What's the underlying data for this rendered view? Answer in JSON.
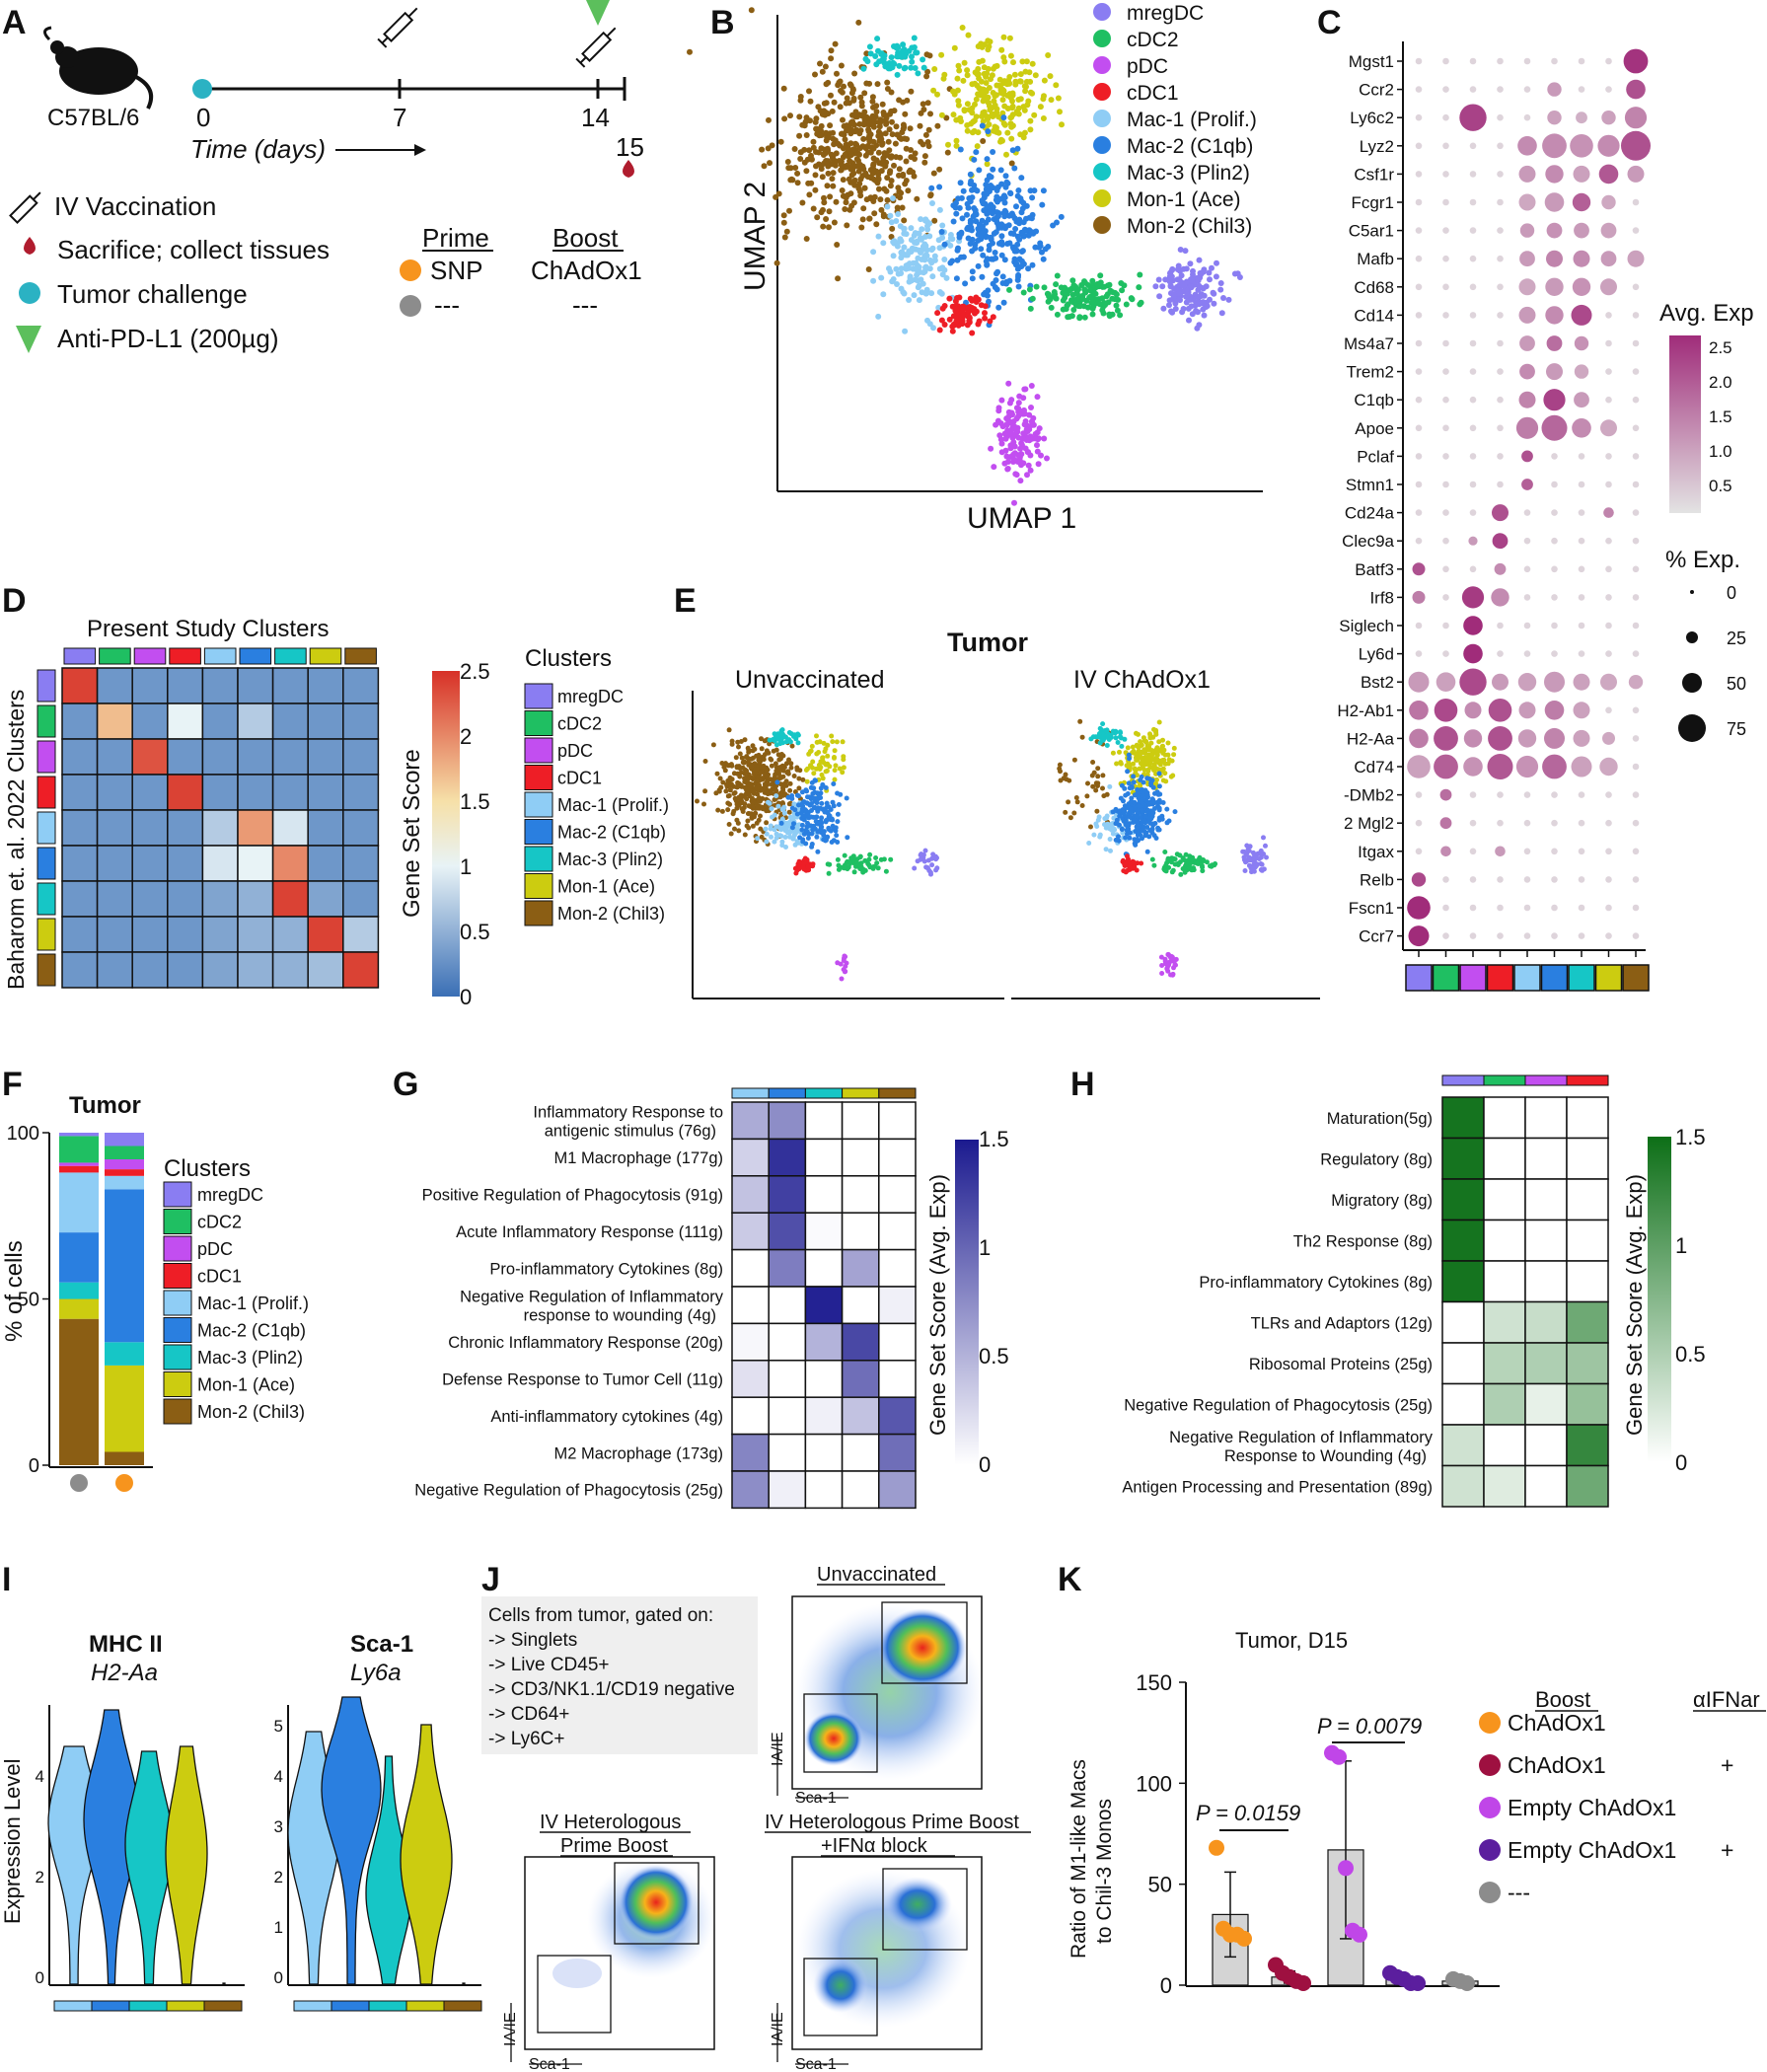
{
  "colors": {
    "mregDC": "#8a7df2",
    "cDC2": "#1fbf62",
    "pDC": "#c24ef0",
    "cDC1": "#ee1e26",
    "Mac1": "#8fcdf5",
    "Mac2": "#2a7fe0",
    "Mac3": "#16c6c6",
    "Mon1": "#cccc10",
    "Mon2": "#8b5e14",
    "orange": "#f7941d",
    "maroon": "#9e1040",
    "violet": "#c046e8",
    "purple": "#5b1e9e",
    "grey": "#8c8c8c",
    "teal": "#2bb2c3",
    "green_tri": "#5cbf5c",
    "red_drop": "#b01c2e"
  },
  "clusters": [
    "mregDC",
    "cDC2",
    "pDC",
    "cDC1",
    "Mac-1 (Prolif.)",
    "Mac-2 (C1qb)",
    "Mac-3 (Plin2)",
    "Mon-1 (Ace)",
    "Mon-2 (Chil3)"
  ],
  "panelA": {
    "label": "A",
    "mouse": "C57BL/6",
    "ticks": [
      "0",
      "7",
      "14"
    ],
    "tick15": "15",
    "time_label": "Time (days)",
    "legend": [
      "IV Vaccination",
      "Sacrifice; collect tissues",
      "Tumor challenge",
      "Anti-PD-L1 (200µg)"
    ],
    "table": {
      "h1": "Prime",
      "h2": "Boost",
      "r1c1": "SNP",
      "r1c2": "ChAdOx1",
      "r2c1": "---",
      "r2c2": "---"
    }
  },
  "panelB": {
    "label": "B",
    "xlabel": "UMAP 1",
    "ylabel": "UMAP 2"
  },
  "panelC": {
    "label": "C",
    "genes": [
      "Mgst1",
      "Ccr2",
      "Ly6c2",
      "Lyz2",
      "Csf1r",
      "Fcgr1",
      "C5ar1",
      "Mafb",
      "Cd68",
      "Cd14",
      "Ms4a7",
      "Trem2",
      "C1qb",
      "Apoe",
      "Pclaf",
      "Stmn1",
      "Cd24a",
      "Clec9a",
      "Batf3",
      "Irf8",
      "Siglech",
      "Ly6d",
      "Bst2",
      "H2-Ab1",
      "H2-Aa",
      "Cd74",
      "-DMb2",
      "2  Mgl2",
      "Itgax",
      "Relb",
      "Fscn1",
      "Ccr7"
    ],
    "avg_title": "Avg. Exp",
    "avg_ticks": [
      "2.5",
      "2.0",
      "1.5",
      "1.0",
      "0.5"
    ],
    "pct_title": "% Exp.",
    "pct_ticks": [
      "0",
      "25",
      "50",
      "75"
    ]
  },
  "panelD": {
    "label": "D",
    "title": "Present Study Clusters",
    "ylabel": "Baharom et. al. 2022 Clusters",
    "cbar_label": "Gene Set Score",
    "cbar_ticks": [
      "2.5",
      "2",
      "1.5",
      "1",
      "0.5",
      "0"
    ],
    "legend_title": "Clusters"
  },
  "panelE": {
    "label": "E",
    "title": "Tumor",
    "left": "Unvaccinated",
    "right": "IV ChAdOx1"
  },
  "panelF": {
    "label": "F",
    "title": "Tumor",
    "ylabel": "% of cells",
    "yticks": [
      "100",
      "50",
      "0"
    ],
    "legend_title": "Clusters"
  },
  "panelG": {
    "label": "G",
    "rows": [
      [
        "Inflammatory Response to",
        "antigenic stimulus (76g)"
      ],
      [
        "M1 Macrophage (177g)"
      ],
      [
        "Positive Regulation of Phagocytosis (91g)"
      ],
      [
        "Acute Inflammatory Response (111g)"
      ],
      [
        "Pro-inflammatory Cytokines (8g)"
      ],
      [
        "Negative Regulation of Inflammatory",
        "response to wounding (4g)"
      ],
      [
        "Chronic Inflammatory Response (20g)"
      ],
      [
        "Defense Response to Tumor Cell (11g)"
      ],
      [
        "Anti-inflammatory cytokines (4g)"
      ],
      [
        "M2 Macrophage (173g)"
      ],
      [
        "Negative Regulation of Phagocytosis (25g)"
      ]
    ],
    "cbar_label": "Gene Set Score (Avg. Exp)",
    "cbar_ticks": [
      "1.5",
      "1",
      "0.5",
      "0"
    ]
  },
  "panelH": {
    "label": "H",
    "rows": [
      [
        "Maturation(5g)"
      ],
      [
        "Regulatory (8g)"
      ],
      [
        "Migratory (8g)"
      ],
      [
        "Th2 Response (8g)"
      ],
      [
        "Pro-inflammatory Cytokines (8g)"
      ],
      [
        "TLRs and Adaptors (12g)"
      ],
      [
        "Ribosomal Proteins (25g)"
      ],
      [
        "Negative Regulation of Phagocytosis (25g)"
      ],
      [
        "Negative Regulation of Inflammatory",
        "Response to Wounding (4g)"
      ],
      [
        "Antigen Processing and Presentation (89g)"
      ]
    ],
    "cbar_label": "Gene Set Score (Avg. Exp)",
    "cbar_ticks": [
      "1.5",
      "1",
      "0.5",
      "0"
    ]
  },
  "panelI": {
    "label": "I",
    "left_title": "MHC II",
    "left_sub": "H2-Aa",
    "right_title": "Sca-1",
    "right_sub": "Ly6a",
    "ylabel": "Expression Level",
    "left_ticks": [
      "4",
      "2",
      "0"
    ],
    "right_ticks": [
      "5",
      "4",
      "3",
      "2",
      "1",
      "0"
    ]
  },
  "panelJ": {
    "label": "J",
    "gate_lines": [
      "Cells from tumor, gated on:",
      "-> Singlets",
      "-> Live CD45+",
      "-> CD3/NK1.1/CD19 negative",
      "-> CD64+",
      "-> Ly6C+"
    ],
    "t1": "Unvaccinated",
    "t2a": "IV Heterologous",
    "t2b": "Prime Boost",
    "t3a": "IV Heterologous Prime Boost",
    "t3b": "+IFNα block",
    "xaxis": "Sca-1",
    "yaxis": "IA/IE"
  },
  "panelK": {
    "label": "K",
    "title": "Tumor, D15",
    "ylabel1": "Ratio of M1-like Macs",
    "ylabel2": "to Chil-3 Monos",
    "yticks": [
      "150",
      "100",
      "50",
      "0"
    ],
    "p1": "P = 0.0159",
    "p2": "P = 0.0079",
    "legend_boost": "Boost",
    "legend_ifnar": "αIFNar",
    "legend_rows": [
      {
        "label": "ChAdOx1",
        "ifnar": ""
      },
      {
        "label": "ChAdOx1",
        "ifnar": "+"
      },
      {
        "label": "Empty ChAdOx1",
        "ifnar": ""
      },
      {
        "label": "Empty ChAdOx1",
        "ifnar": "+"
      },
      {
        "label": "---",
        "ifnar": ""
      }
    ]
  },
  "chart_data": [
    {
      "type": "heatmap",
      "title": "Present Study Clusters",
      "ylabel": "Baharom et. al. 2022 Clusters",
      "xlabel": "",
      "categories": [
        "mregDC",
        "cDC2",
        "pDC",
        "cDC1",
        "Mac-1 (Prolif.)",
        "Mac-2 (C1qb)",
        "Mac-3 (Plin2)",
        "Mon-1 (Ace)",
        "Mon-2 (Chil3)"
      ],
      "range": [
        0,
        2.5
      ],
      "matrix": [
        [
          2.4,
          0.3,
          0.3,
          0.3,
          0.3,
          0.3,
          0.3,
          0.3,
          0.3
        ],
        [
          0.3,
          1.7,
          0.3,
          1.0,
          0.3,
          0.7,
          0.3,
          0.3,
          0.3
        ],
        [
          0.3,
          0.3,
          2.3,
          0.3,
          0.3,
          0.3,
          0.3,
          0.3,
          0.3
        ],
        [
          0.3,
          0.3,
          0.3,
          2.4,
          0.3,
          0.3,
          0.3,
          0.3,
          0.3
        ],
        [
          0.3,
          0.3,
          0.3,
          0.3,
          0.7,
          1.9,
          0.9,
          0.3,
          0.3
        ],
        [
          0.3,
          0.3,
          0.3,
          0.3,
          0.9,
          1.0,
          2.0,
          0.3,
          0.3
        ],
        [
          0.3,
          0.3,
          0.3,
          0.3,
          0.4,
          0.5,
          2.4,
          0.4,
          0.3
        ],
        [
          0.3,
          0.3,
          0.3,
          0.3,
          0.4,
          0.5,
          0.5,
          2.4,
          0.7
        ],
        [
          0.3,
          0.3,
          0.3,
          0.3,
          0.4,
          0.5,
          0.5,
          0.6,
          2.4
        ]
      ]
    },
    {
      "type": "bar",
      "title": "Tumor",
      "ylabel": "% of cells",
      "ylim": [
        0,
        100
      ],
      "categories": [
        "unvaccinated",
        "SNP/ChAdOx1"
      ],
      "series": [
        {
          "name": "Mon-2 (Chil3)",
          "values": [
            44,
            4
          ]
        },
        {
          "name": "Mon-1 (Ace)",
          "values": [
            6,
            26
          ]
        },
        {
          "name": "Mac-3 (Plin2)",
          "values": [
            5,
            7
          ]
        },
        {
          "name": "Mac-2 (C1qb)",
          "values": [
            15,
            46
          ]
        },
        {
          "name": "Mac-1 (Prolif.)",
          "values": [
            18,
            4
          ]
        },
        {
          "name": "cDC1",
          "values": [
            2,
            2
          ]
        },
        {
          "name": "pDC",
          "values": [
            1,
            3
          ]
        },
        {
          "name": "cDC2",
          "values": [
            8,
            4
          ]
        },
        {
          "name": "mregDC",
          "values": [
            1,
            4
          ]
        }
      ]
    },
    {
      "type": "heatmap",
      "title": "Panel G",
      "categories": [
        "Mac-1 (Prolif.)",
        "Mac-2 (C1qb)",
        "Mac-3 (Plin2)",
        "Mon-1 (Ace)",
        "Mon-2 (Chil3)"
      ],
      "range": [
        0,
        1.5
      ],
      "matrix": [
        [
          0.55,
          0.75,
          0,
          0,
          0
        ],
        [
          0.3,
          1.35,
          0,
          0,
          0
        ],
        [
          0.4,
          1.25,
          0,
          0,
          0
        ],
        [
          0.35,
          1.15,
          0.03,
          0,
          0
        ],
        [
          0,
          0.85,
          0,
          0.6,
          0
        ],
        [
          0,
          0,
          1.45,
          0,
          0.1
        ],
        [
          0.05,
          0,
          0.5,
          1.2,
          0
        ],
        [
          0.2,
          0,
          0,
          0.95,
          0
        ],
        [
          0,
          0,
          0.1,
          0.4,
          1.1
        ],
        [
          0.8,
          0,
          0,
          0,
          0.95
        ],
        [
          0.75,
          0.1,
          0,
          0,
          0.65
        ]
      ]
    },
    {
      "type": "heatmap",
      "title": "Panel H",
      "categories": [
        "mregDC",
        "cDC2",
        "pDC",
        "cDC1"
      ],
      "range": [
        0,
        1.5
      ],
      "matrix": [
        [
          1.45,
          0,
          0,
          0
        ],
        [
          1.45,
          0,
          0,
          0
        ],
        [
          1.45,
          0,
          0,
          0
        ],
        [
          1.45,
          0,
          0,
          0
        ],
        [
          1.45,
          0,
          0,
          0
        ],
        [
          0,
          0.3,
          0.35,
          0.9
        ],
        [
          0,
          0.45,
          0.5,
          0.6
        ],
        [
          0,
          0.5,
          0.15,
          0.65
        ],
        [
          0.3,
          0,
          0,
          1.25
        ],
        [
          0.3,
          0.2,
          0,
          0.9
        ]
      ]
    },
    {
      "type": "scatter",
      "title": "Tumor, D15",
      "ylabel": "Ratio of M1-like Macs to Chil-3 Monos",
      "ylim": [
        0,
        150
      ],
      "groups": [
        {
          "name": "ChAdOx1",
          "mean": 35,
          "sd": 21,
          "points": [
            68,
            28,
            25,
            25,
            23
          ]
        },
        {
          "name": "ChAdOx1 + αIFNar",
          "mean": 4,
          "sd": 3,
          "points": [
            10,
            6,
            4,
            2,
            1
          ]
        },
        {
          "name": "Empty ChAdOx1",
          "mean": 67,
          "sd": 44,
          "points": [
            115,
            113,
            58,
            27,
            25
          ]
        },
        {
          "name": "Empty ChAdOx1 + αIFNar",
          "mean": 3,
          "sd": 2,
          "points": [
            6,
            4,
            3,
            1,
            1
          ]
        },
        {
          "name": "---",
          "mean": 2,
          "sd": 1,
          "points": [
            3,
            2,
            1
          ]
        }
      ]
    }
  ]
}
